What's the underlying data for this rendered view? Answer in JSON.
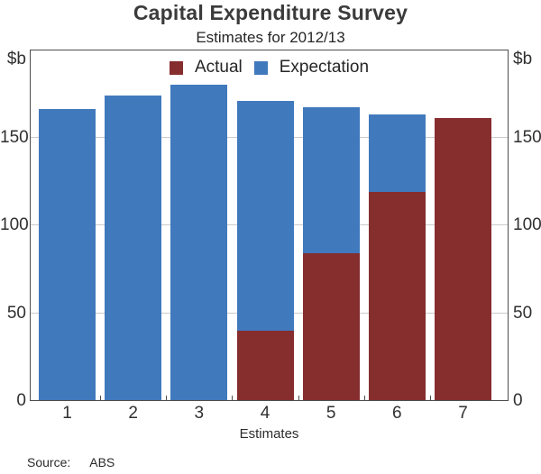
{
  "title": "Capital Expenditure Survey",
  "subtitle": "Estimates for 2012/13",
  "axis": {
    "left_unit": "$b",
    "right_unit": "$b",
    "xlabel": "Estimates"
  },
  "legend": [
    {
      "label": "Actual",
      "color": "#862D2E"
    },
    {
      "label": "Expectation",
      "color": "#4179BD"
    }
  ],
  "source": {
    "label": "Source:",
    "value": "ABS"
  },
  "chart_data": {
    "type": "bar",
    "title": "Capital Expenditure Survey",
    "subtitle": "Estimates for 2012/13",
    "xlabel": "Estimates",
    "ylabel": "$b",
    "ylim": [
      0,
      200
    ],
    "yticks": [
      0,
      50,
      100,
      150
    ],
    "gridlines": [
      50,
      100,
      150
    ],
    "grid": true,
    "legend_position": "top-center",
    "categories": [
      "1",
      "2",
      "3",
      "4",
      "5",
      "6",
      "7"
    ],
    "series": [
      {
        "name": "Expectation",
        "color": "#4179BD",
        "values": [
          166,
          174,
          180,
          171,
          167,
          163,
          161
        ]
      },
      {
        "name": "Actual",
        "color": "#862D2E",
        "values": [
          0,
          0,
          0,
          40,
          84,
          119,
          161
        ]
      }
    ],
    "note": "Actual (dark red) bars overlay Expectation (blue) bars measured from zero; not additive stacking."
  }
}
